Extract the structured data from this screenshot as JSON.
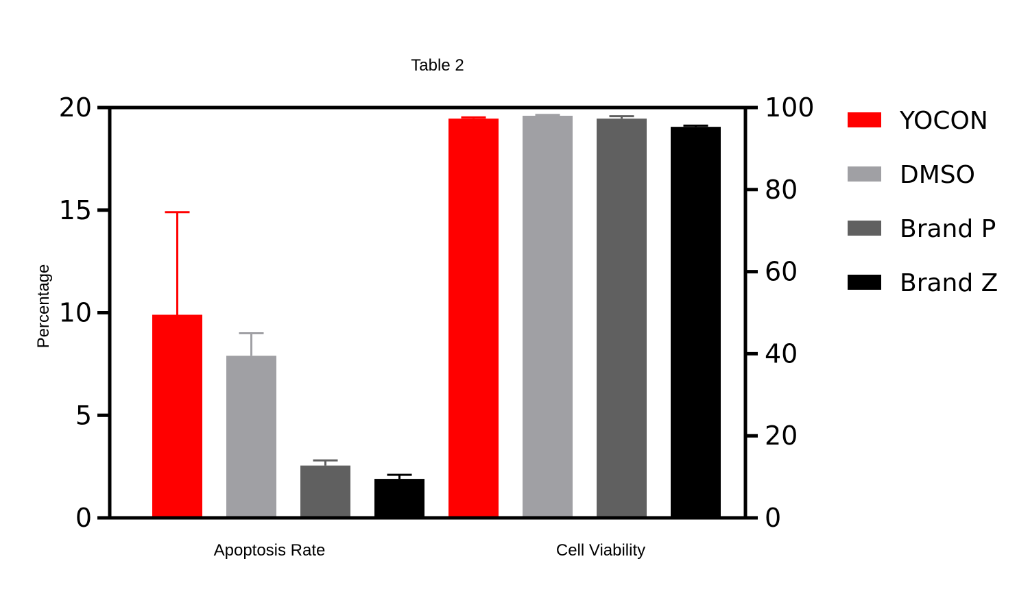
{
  "chart_data": {
    "type": "bar",
    "title": "Table 2",
    "ylabel": "Percentage",
    "categories": [
      "Apoptosis Rate",
      "Cell Viability"
    ],
    "left_axis": {
      "ylim": [
        0,
        20
      ],
      "ticks": [
        "0",
        "5",
        "10",
        "15",
        "20"
      ],
      "applies_to": "Apoptosis Rate"
    },
    "right_axis": {
      "ylim": [
        0,
        100
      ],
      "ticks": [
        "0",
        "20",
        "40",
        "60",
        "80",
        "100"
      ],
      "applies_to": "Cell Viability"
    },
    "series": [
      {
        "name": "YOCON",
        "color": "#ff0000",
        "values": [
          9.9,
          97.3
        ],
        "errors": [
          5.0,
          0.3
        ]
      },
      {
        "name": "DMSO",
        "color": "#a0a0a4",
        "values": [
          7.9,
          98.0
        ],
        "errors": [
          1.1,
          0.2
        ]
      },
      {
        "name": "Brand P",
        "color": "#606060",
        "values": [
          2.55,
          97.3
        ],
        "errors": [
          0.25,
          0.6
        ]
      },
      {
        "name": "Brand Z",
        "color": "#000000",
        "values": [
          1.9,
          95.3
        ],
        "errors": [
          0.2,
          0.3
        ]
      }
    ],
    "grid": false,
    "legend_position": "right"
  }
}
